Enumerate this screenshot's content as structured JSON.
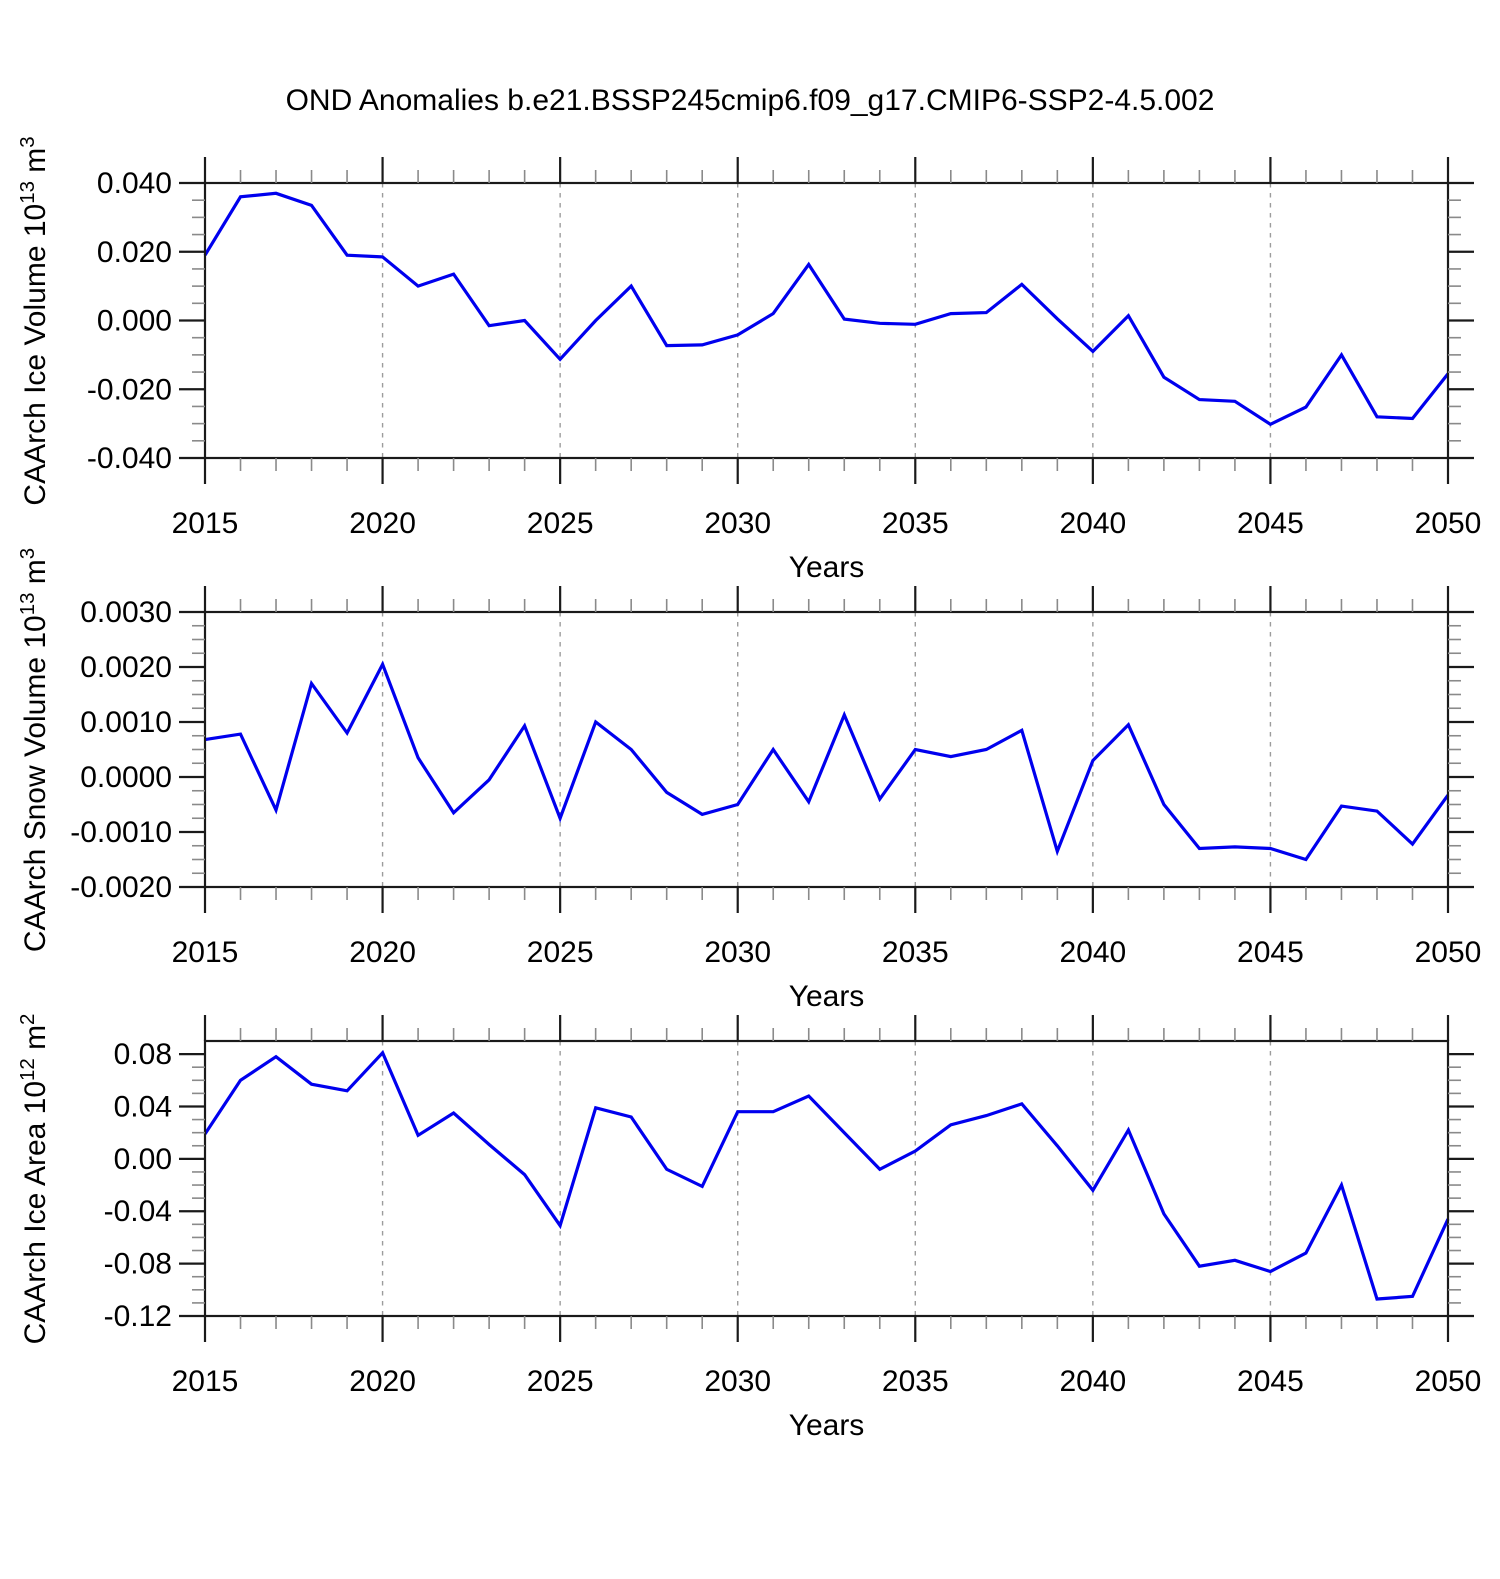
{
  "title": "OND Anomalies b.e21.BSSP245cmip6.f09_g17.CMIP6-SSP2-4.5.002",
  "colors": {
    "line": "#0000ee",
    "grid": "#9c9c9c",
    "frame": "#1a1a1a",
    "major_tick": "#1a1a1a",
    "minor_tick": "#8a8a8a",
    "text": "#000000",
    "background": "#ffffff"
  },
  "chart_data": [
    {
      "name": "ice-volume",
      "type": "line",
      "ylabel": "CAArch Ice Volume 10^13 m^3",
      "ylabel_parts": [
        {
          "text": "CAArch Ice Volume 10"
        },
        {
          "text": "13",
          "sup": true
        },
        {
          "text": " m"
        },
        {
          "text": "3",
          "sup": true
        }
      ],
      "xlabel": "Years",
      "x": [
        2015,
        2016,
        2017,
        2018,
        2019,
        2020,
        2021,
        2022,
        2023,
        2024,
        2025,
        2026,
        2027,
        2028,
        2029,
        2030,
        2031,
        2032,
        2033,
        2034,
        2035,
        2036,
        2037,
        2038,
        2039,
        2040,
        2041,
        2042,
        2043,
        2044,
        2045,
        2046,
        2047,
        2048,
        2049,
        2050
      ],
      "values": [
        0.019,
        0.036,
        0.037,
        0.0335,
        0.019,
        0.0185,
        0.01,
        0.0135,
        -0.0015,
        0.0,
        -0.0113,
        0.0,
        0.01,
        -0.0073,
        -0.0071,
        -0.0042,
        0.002,
        0.0163,
        0.0004,
        -0.0008,
        -0.0011,
        0.002,
        0.0023,
        0.0105,
        0.0005,
        -0.009,
        0.0014,
        -0.0165,
        -0.023,
        -0.0235,
        -0.0302,
        -0.0252,
        -0.01,
        -0.028,
        -0.0285,
        -0.0155
      ],
      "ylim": [
        -0.04,
        0.04
      ],
      "yticks": {
        "values": [
          0.04,
          0.02,
          0.0,
          -0.02,
          -0.04
        ],
        "labels": [
          "0.040",
          "0.020",
          "0.000",
          "-0.020",
          "-0.040"
        ]
      },
      "yminor_step": 0.005,
      "xlim": [
        2015,
        2050
      ],
      "xticks": {
        "values": [
          2015,
          2020,
          2025,
          2030,
          2035,
          2040,
          2045,
          2050
        ],
        "labels": [
          "2015",
          "2020",
          "2025",
          "2030",
          "2035",
          "2040",
          "2045",
          "2050"
        ]
      },
      "xminor_step": 1,
      "grid_x": [
        2020,
        2025,
        2030,
        2035,
        2040,
        2045
      ]
    },
    {
      "name": "snow-volume",
      "type": "line",
      "ylabel": "CAArch Snow Volume 10^13 m^3",
      "ylabel_parts": [
        {
          "text": "CAArch Snow Volume 10"
        },
        {
          "text": "13",
          "sup": true
        },
        {
          "text": " m"
        },
        {
          "text": "3",
          "sup": true
        }
      ],
      "xlabel": "Years",
      "x": [
        2015,
        2016,
        2017,
        2018,
        2019,
        2020,
        2021,
        2022,
        2023,
        2024,
        2025,
        2026,
        2027,
        2028,
        2029,
        2030,
        2031,
        2032,
        2033,
        2034,
        2035,
        2036,
        2037,
        2038,
        2039,
        2040,
        2041,
        2042,
        2043,
        2044,
        2045,
        2046,
        2047,
        2048,
        2049,
        2050
      ],
      "values": [
        0.00068,
        0.00078,
        -0.0006,
        0.0017,
        0.0008,
        0.00205,
        0.00035,
        -0.00065,
        -5e-05,
        0.00093,
        -0.00075,
        0.001,
        0.0005,
        -0.00028,
        -0.00068,
        -0.0005,
        0.0005,
        -0.00045,
        0.00113,
        -0.0004,
        0.0005,
        0.00037,
        0.0005,
        0.00085,
        -0.00135,
        0.0003,
        0.00095,
        -0.0005,
        -0.0013,
        -0.00127,
        -0.0013,
        -0.0015,
        -0.00053,
        -0.00062,
        -0.00122,
        -0.00033
      ],
      "ylim": [
        -0.002,
        0.003
      ],
      "yticks": {
        "values": [
          0.003,
          0.002,
          0.001,
          0.0,
          -0.001,
          -0.002
        ],
        "labels": [
          "0.0030",
          "0.0020",
          "0.0010",
          "0.0000",
          "-0.0010",
          "-0.0020"
        ]
      },
      "yminor_step": 0.00025,
      "xlim": [
        2015,
        2050
      ],
      "xticks": {
        "values": [
          2015,
          2020,
          2025,
          2030,
          2035,
          2040,
          2045,
          2050
        ],
        "labels": [
          "2015",
          "2020",
          "2025",
          "2030",
          "2035",
          "2040",
          "2045",
          "2050"
        ]
      },
      "xminor_step": 1,
      "grid_x": [
        2020,
        2025,
        2030,
        2035,
        2040,
        2045
      ]
    },
    {
      "name": "ice-area",
      "type": "line",
      "ylabel": "CAArch Ice Area 10^12 m^2",
      "ylabel_parts": [
        {
          "text": "CAArch Ice Area 10"
        },
        {
          "text": "12",
          "sup": true
        },
        {
          "text": " m"
        },
        {
          "text": "2",
          "sup": true
        }
      ],
      "xlabel": "Years",
      "x": [
        2015,
        2016,
        2017,
        2018,
        2019,
        2020,
        2021,
        2022,
        2023,
        2024,
        2025,
        2026,
        2027,
        2028,
        2029,
        2030,
        2031,
        2032,
        2033,
        2034,
        2035,
        2036,
        2037,
        2038,
        2039,
        2040,
        2041,
        2042,
        2043,
        2044,
        2045,
        2046,
        2047,
        2048,
        2049,
        2050
      ],
      "values": [
        0.019,
        0.06,
        0.078,
        0.057,
        0.052,
        0.081,
        0.018,
        0.035,
        0.011,
        -0.012,
        -0.051,
        0.039,
        0.032,
        -0.008,
        -0.021,
        0.036,
        0.036,
        0.048,
        0.02,
        -0.008,
        0.006,
        0.026,
        0.033,
        0.042,
        0.01,
        -0.024,
        0.022,
        -0.042,
        -0.082,
        -0.0775,
        -0.086,
        -0.072,
        -0.02,
        -0.107,
        -0.105,
        -0.046
      ],
      "ylim": [
        -0.12,
        0.09
      ],
      "yticks": {
        "values": [
          0.08,
          0.04,
          0.0,
          -0.04,
          -0.08,
          -0.12
        ],
        "labels": [
          "0.08",
          "0.04",
          "0.00",
          "-0.04",
          "-0.08",
          "-0.12"
        ]
      },
      "yminor_step": 0.01,
      "xlim": [
        2015,
        2050
      ],
      "xticks": {
        "values": [
          2015,
          2020,
          2025,
          2030,
          2035,
          2040,
          2045,
          2050
        ],
        "labels": [
          "2015",
          "2020",
          "2025",
          "2030",
          "2035",
          "2040",
          "2045",
          "2050"
        ]
      },
      "xminor_step": 1,
      "grid_x": [
        2020,
        2025,
        2030,
        2035,
        2040,
        2045
      ]
    }
  ]
}
